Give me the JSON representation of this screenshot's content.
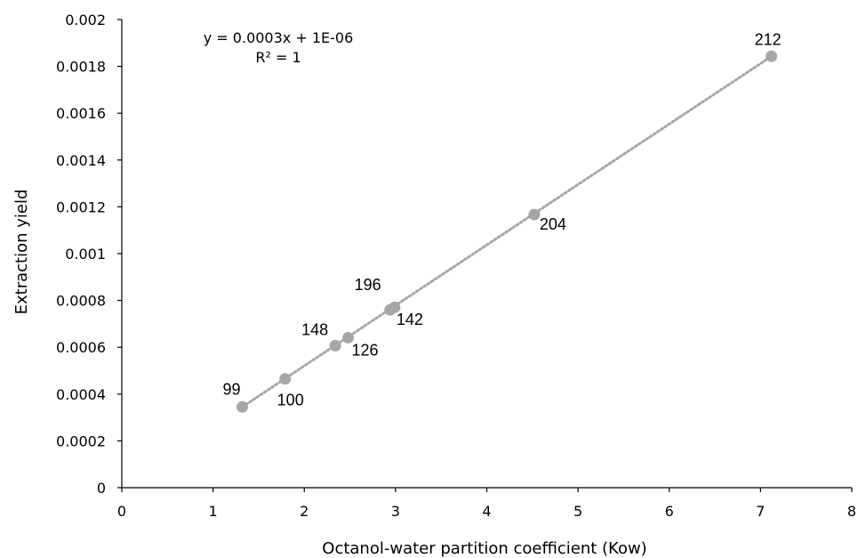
{
  "chart_data": {
    "type": "scatter",
    "title": "",
    "xlabel": "Octanol-water partition coefficient (Kow)",
    "ylabel": "Extraction yield",
    "xlim": [
      0,
      8
    ],
    "ylim": [
      0,
      0.002
    ],
    "x_ticks": [
      "0",
      "1",
      "2",
      "3",
      "4",
      "5",
      "6",
      "7",
      "8"
    ],
    "y_ticks": [
      "0",
      "0.0002",
      "0.0004",
      "0.0006",
      "0.0008",
      "0.001",
      "0.0012",
      "0.0014",
      "0.0016",
      "0.0018",
      "0.002"
    ],
    "grid": false,
    "legend": "none",
    "marker_color": "#a6a6a6",
    "trendline_color": "#a6a6a6",
    "trendline_style": "dotted",
    "points": [
      {
        "x": 1.32,
        "y": 0.000345,
        "label": "99"
      },
      {
        "x": 1.79,
        "y": 0.000465,
        "label": "100"
      },
      {
        "x": 2.34,
        "y": 0.000607,
        "label": "148"
      },
      {
        "x": 2.48,
        "y": 0.000641,
        "label": "126"
      },
      {
        "x": 2.94,
        "y": 0.00076,
        "label": "196"
      },
      {
        "x": 2.99,
        "y": 0.000771,
        "label": "142"
      },
      {
        "x": 4.52,
        "y": 0.001167,
        "label": "204"
      },
      {
        "x": 7.12,
        "y": 0.001843,
        "label": "212"
      }
    ],
    "trendline": {
      "equation": "y = 0.0003x + 1E-06",
      "r_squared": "R² = 1",
      "x_range": [
        1.32,
        7.12
      ]
    }
  }
}
